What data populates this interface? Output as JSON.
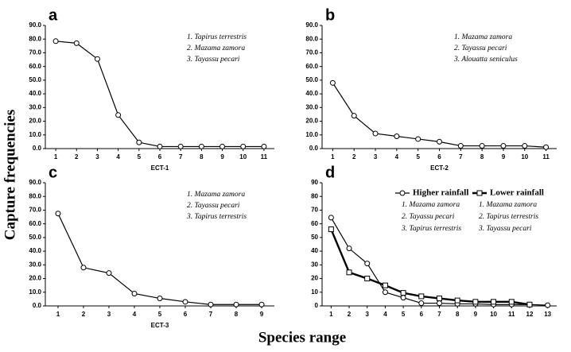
{
  "figure": {
    "ylabel": "Capture frequencies",
    "xlabel": "Species range"
  },
  "chart_data": [
    {
      "type": "line",
      "label": "a",
      "xlabel": "ECT-1",
      "marker": "circle",
      "x": [
        1,
        2,
        3,
        4,
        5,
        6,
        7,
        8,
        9,
        10,
        11
      ],
      "values": [
        78.5,
        77,
        65.5,
        24.5,
        4.5,
        1.5,
        1.5,
        1.5,
        1.5,
        1.5,
        1.5
      ],
      "annotations": [
        "1. Tapirus terrestris",
        "2. Mazama zamora",
        "3. Tayassu pecari"
      ],
      "xlim": [
        0.5,
        11.5
      ],
      "xticks": [
        1,
        2,
        3,
        4,
        5,
        6,
        7,
        8,
        9,
        10,
        11
      ],
      "ylim": [
        0,
        90
      ],
      "yticks": [
        {
          "value": 0,
          "label": "0.0"
        },
        {
          "value": 10,
          "label": "10.0"
        },
        {
          "value": 20,
          "label": "20.0"
        },
        {
          "value": 30,
          "label": "30.0"
        },
        {
          "value": 40,
          "label": "40.0"
        },
        {
          "value": 50,
          "label": "50.0"
        },
        {
          "value": 60,
          "label": "60.0"
        },
        {
          "value": 70,
          "label": "70.0"
        },
        {
          "value": 80,
          "label": "80.0"
        },
        {
          "value": 90,
          "label": "90.0"
        }
      ]
    },
    {
      "type": "line",
      "label": "b",
      "xlabel": "ECT-2",
      "marker": "circle",
      "x": [
        1,
        2,
        3,
        4,
        5,
        6,
        7,
        8,
        9,
        10,
        11
      ],
      "values": [
        48,
        24,
        11,
        9,
        7,
        5,
        2,
        2,
        2,
        2,
        1
      ],
      "annotations": [
        "1. Mazama zamora",
        "2. Tayassu pecari",
        "3. Alouatta seniculus"
      ],
      "xlim": [
        0.5,
        11.5
      ],
      "xticks": [
        1,
        2,
        3,
        4,
        5,
        6,
        7,
        8,
        9,
        10,
        11
      ],
      "ylim": [
        0,
        90
      ],
      "yticks": [
        {
          "value": 0,
          "label": "0.0"
        },
        {
          "value": 10,
          "label": "10.0"
        },
        {
          "value": 20,
          "label": "20.0"
        },
        {
          "value": 30,
          "label": "30.0"
        },
        {
          "value": 40,
          "label": "40.0"
        },
        {
          "value": 50,
          "label": "50.0"
        },
        {
          "value": 60,
          "label": "60.0"
        },
        {
          "value": 70,
          "label": "70.0"
        },
        {
          "value": 80,
          "label": "80.0"
        },
        {
          "value": 90,
          "label": "90.0"
        }
      ]
    },
    {
      "type": "line",
      "label": "c",
      "xlabel": "ECT-3",
      "marker": "circle",
      "x": [
        1,
        2,
        3,
        4,
        5,
        6,
        7,
        8,
        9
      ],
      "values": [
        67.5,
        28,
        24,
        9,
        5.5,
        3,
        1,
        1,
        1
      ],
      "annotations": [
        "1. Mazama zamora",
        "2. Tayassu pecari",
        "3. Tapirus terrestris"
      ],
      "xlim": [
        0.5,
        9.5
      ],
      "xticks": [
        1,
        2,
        3,
        4,
        5,
        6,
        7,
        8,
        9
      ],
      "ylim": [
        0,
        90
      ],
      "yticks": [
        {
          "value": 0,
          "label": "0.0"
        },
        {
          "value": 10,
          "label": "10.0"
        },
        {
          "value": 20,
          "label": "20.0"
        },
        {
          "value": 30,
          "label": "30.0"
        },
        {
          "value": 40,
          "label": "40.0"
        },
        {
          "value": 50,
          "label": "50.0"
        },
        {
          "value": 60,
          "label": "60.0"
        },
        {
          "value": 70,
          "label": "70.0"
        },
        {
          "value": 80,
          "label": "80.0"
        },
        {
          "value": 90,
          "label": "90.0"
        }
      ]
    },
    {
      "type": "line",
      "label": "d",
      "x": [
        1,
        2,
        3,
        4,
        5,
        6,
        7,
        8,
        9,
        10,
        11,
        12,
        13
      ],
      "series": [
        {
          "name": "Higher rainfall",
          "marker": "circle",
          "color": "#000000",
          "line_width": 1.2,
          "values": [
            64.5,
            42,
            31,
            10,
            6,
            2,
            2,
            1.5,
            1.5,
            1,
            1,
            1,
            0.5
          ],
          "species": [
            "1. Mazama zamora",
            "2. Tayassu pecari",
            "3. Tapirus terrestris"
          ]
        },
        {
          "name": "Lower rainfall",
          "marker": "square",
          "color": "#000000",
          "line_width": 2.4,
          "values": [
            56,
            24.5,
            20,
            15,
            9.5,
            7,
            5.5,
            4,
            3,
            3,
            3,
            1,
            null
          ],
          "species": [
            "1. Mazama zamora",
            "2. Tapirus terrestris",
            "3. Tayassu pecari"
          ]
        }
      ],
      "xlim": [
        0.5,
        13.5
      ],
      "xticks": [
        1,
        2,
        3,
        4,
        5,
        6,
        7,
        8,
        9,
        10,
        11,
        12,
        13
      ],
      "ylim": [
        0,
        90
      ],
      "yticks": [
        0,
        10,
        20,
        30,
        40,
        50,
        60,
        70,
        80,
        90
      ]
    }
  ]
}
